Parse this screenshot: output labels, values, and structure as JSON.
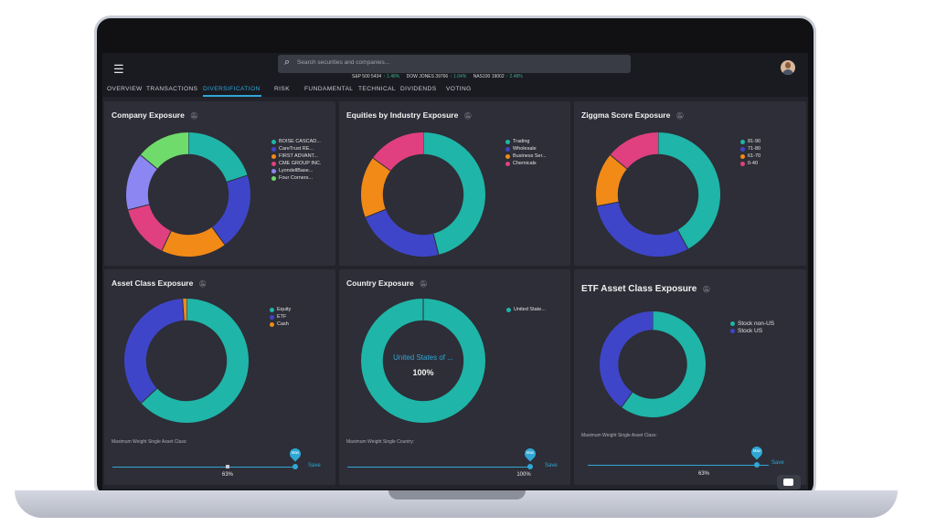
{
  "header": {
    "search_placeholder": "Search securities and companies...",
    "ticker": [
      {
        "name": "S&P 500 5434",
        "change": "↑ 1.48%"
      },
      {
        "name": "DOW JONES 39766",
        "change": "↑ 1.04%"
      },
      {
        "name": "NAS100 19002",
        "change": "↑ 2.48%"
      }
    ]
  },
  "tabs": [
    {
      "label": "OVERVIEW"
    },
    {
      "label": "TRANSACTIONS"
    },
    {
      "label": "DIVERSIFICATION"
    },
    {
      "label": "RISK"
    },
    {
      "label": "FUNDAMENTAL"
    },
    {
      "label": "TECHNICAL"
    },
    {
      "label": "DIVIDENDS"
    },
    {
      "label": "VOTING"
    }
  ],
  "active_tab": "DIVERSIFICATION",
  "colors": {
    "teal": "#1fb5a8",
    "indigo": "#3f45c8",
    "orange": "#f28a17",
    "pink": "#e0407f",
    "lavender": "#8c86f2",
    "green": "#6fdb6a",
    "accent": "#2fa7d6"
  },
  "cards": {
    "company": {
      "title": "Company Exposure",
      "legend": [
        "BOISE CASCAD...",
        "CareTrust RE...",
        "FIRST ADVANT...",
        "CME GROUP INC.",
        "LyondellBase...",
        "Four Corners..."
      ]
    },
    "industry": {
      "title": "Equities by Industry Exposure",
      "legend": [
        "Trading",
        "Wholesale",
        "Business Ser...",
        "Chemicals"
      ]
    },
    "ziggma": {
      "title": "Ziggma Score Exposure",
      "legend": [
        "81-90",
        "71-80",
        "61-70",
        "0-40"
      ]
    },
    "asset": {
      "title": "Asset Class Exposure",
      "legend": [
        "Equity",
        "ETF",
        "Cash"
      ],
      "slider_label": "Maximum Weight Single Asset Class:",
      "max": "Max",
      "save": "Save",
      "pct": "63%",
      "value": 0.63
    },
    "country": {
      "title": "Country Exposure",
      "legend": [
        "United State..."
      ],
      "center_label": "United States of ...",
      "center_value": "100%",
      "slider_label": "Maximum Weight Single Country:",
      "max": "Max",
      "save": "Save",
      "pct": "100%",
      "value": 1.0
    },
    "etf": {
      "title": "ETF Asset Class Exposure",
      "legend": [
        "Stock non-US",
        "Stock US"
      ],
      "slider_label": "Maximum Weight Single Asset Class:",
      "max": "Max",
      "save": "Save",
      "pct": "63%",
      "value": 0.63
    }
  },
  "chart_data": [
    {
      "type": "pie",
      "title": "Company Exposure",
      "categories": [
        "BOISE CASCAD...",
        "CareTrust RE...",
        "FIRST ADVANT...",
        "CME GROUP INC.",
        "LyondellBase...",
        "Four Corners..."
      ],
      "values": [
        20,
        20,
        17,
        14,
        15,
        14
      ]
    },
    {
      "type": "pie",
      "title": "Equities by Industry Exposure",
      "categories": [
        "Trading",
        "Wholesale",
        "Business Ser...",
        "Chemicals"
      ],
      "values": [
        46,
        23,
        16,
        15
      ]
    },
    {
      "type": "pie",
      "title": "Ziggma Score Exposure",
      "categories": [
        "81-90",
        "71-80",
        "61-70",
        "0-40"
      ],
      "values": [
        42,
        30,
        14,
        14
      ]
    },
    {
      "type": "pie",
      "title": "Asset Class Exposure",
      "categories": [
        "Equity",
        "ETF",
        "Cash"
      ],
      "values": [
        63,
        36,
        1
      ]
    },
    {
      "type": "pie",
      "title": "Country Exposure",
      "categories": [
        "United State..."
      ],
      "values": [
        100
      ]
    },
    {
      "type": "pie",
      "title": "ETF Asset Class Exposure",
      "categories": [
        "Stock non-US",
        "Stock US"
      ],
      "values": [
        60,
        40
      ]
    }
  ]
}
